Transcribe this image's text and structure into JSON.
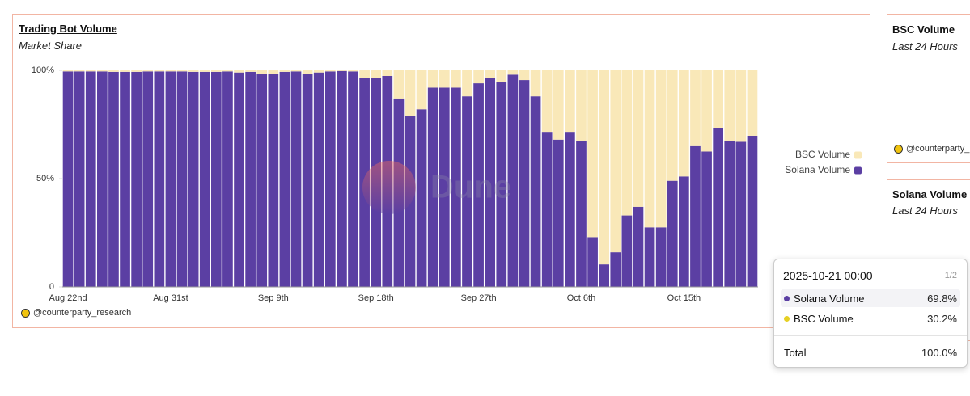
{
  "chart_data": {
    "type": "stacked_bar",
    "title": "Trading Bot Volume",
    "subtitle": "Market Share",
    "categories": [
      "Aug 22nd",
      null,
      null,
      null,
      null,
      null,
      null,
      null,
      null,
      "Aug 31st",
      null,
      null,
      null,
      null,
      null,
      null,
      null,
      null,
      "Sep 9th",
      null,
      null,
      null,
      null,
      null,
      null,
      null,
      null,
      "Sep 18th",
      null,
      null,
      null,
      null,
      null,
      null,
      null,
      null,
      "Sep 27th",
      null,
      null,
      null,
      null,
      null,
      null,
      null,
      null,
      "Oct 6th",
      null,
      null,
      null,
      null,
      null,
      null,
      null,
      null,
      "Oct 15th",
      null,
      null,
      null,
      null,
      null,
      null
    ],
    "series": [
      {
        "name": "Solana Volume",
        "color": "#5b3fa3",
        "values": [
          99.5,
          99.5,
          99.5,
          99.5,
          99.3,
          99.3,
          99.3,
          99.5,
          99.5,
          99.5,
          99.5,
          99.3,
          99.3,
          99.3,
          99.5,
          99.0,
          99.3,
          98.5,
          98.3,
          99.3,
          99.5,
          98.5,
          99.0,
          99.5,
          99.7,
          99.5,
          96.6,
          96.6,
          97.4,
          87,
          79,
          82,
          92,
          92,
          92,
          88,
          94,
          96.6,
          94.4,
          98,
          95.5,
          88,
          71.6,
          68,
          71.6,
          67.5,
          23,
          10.4,
          16,
          33,
          37,
          27.5,
          27.5,
          49,
          51,
          65,
          62.5,
          73.5,
          67.5,
          67,
          69.8
        ]
      },
      {
        "name": "BSC Volume",
        "color": "#f9e8b8",
        "values": [
          0.5,
          0.5,
          0.5,
          0.5,
          0.7,
          0.7,
          0.7,
          0.5,
          0.5,
          0.5,
          0.5,
          0.7,
          0.7,
          0.7,
          0.5,
          1.0,
          0.7,
          1.5,
          1.7,
          0.7,
          0.5,
          1.5,
          1.0,
          0.5,
          0.3,
          0.5,
          3.4,
          3.4,
          2.6,
          13,
          21,
          18,
          8,
          8,
          8,
          12,
          6,
          3.4,
          5.6,
          2,
          4.5,
          12,
          28.4,
          32,
          28.4,
          32.5,
          77,
          89.6,
          84,
          67,
          63,
          72.5,
          72.5,
          51,
          49,
          35,
          37.5,
          26.5,
          32.5,
          33,
          30.2
        ]
      }
    ],
    "ylim": [
      0,
      100
    ],
    "yticks": [
      0,
      {
        "value": 50,
        "label": "50%"
      },
      {
        "value": 100,
        "label": "100%"
      }
    ],
    "legend": "right",
    "watermark": "Dune",
    "attribution": "@counterparty_research"
  },
  "side_panels": [
    {
      "title": "BSC Volume",
      "subtitle": "Last 24 Hours",
      "attribution": "@counterparty_"
    },
    {
      "title": "Solana Volume",
      "subtitle": "Last 24 Hours"
    }
  ],
  "tooltip": {
    "header": "2025-10-21 00:00",
    "page": "1/2",
    "rows": [
      {
        "name": "Solana Volume",
        "value": "69.8%"
      },
      {
        "name": "BSC Volume",
        "value": "30.2%"
      }
    ],
    "total_label": "Total",
    "total_value": "100.0%"
  }
}
